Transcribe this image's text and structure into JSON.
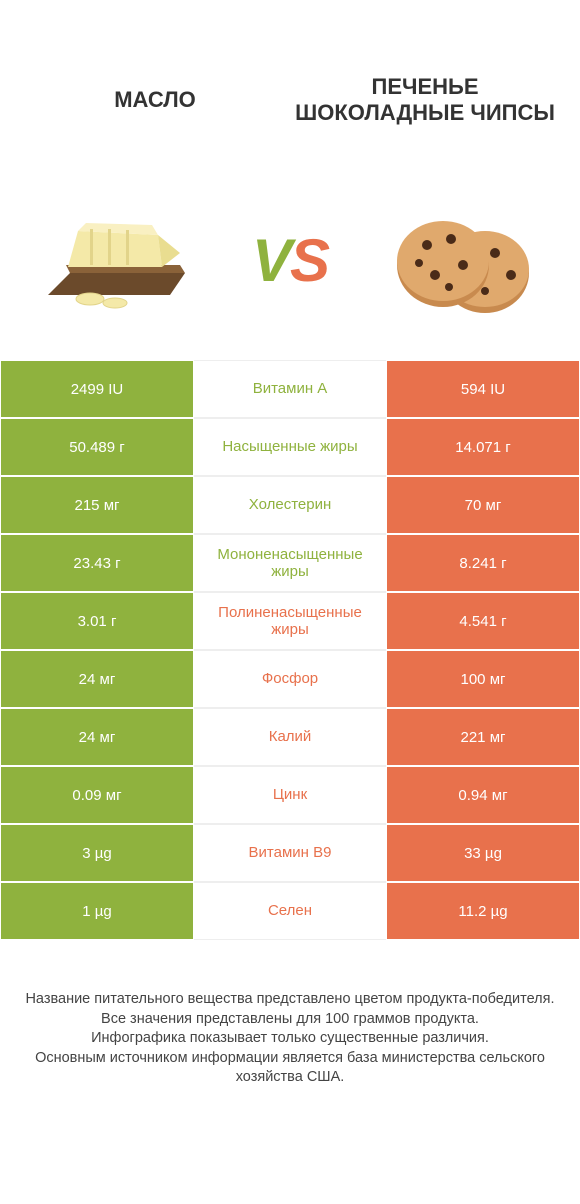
{
  "colors": {
    "green": "#8fb23e",
    "orange": "#e8714c",
    "text_dark": "#333333",
    "bg": "#ffffff"
  },
  "header": {
    "left_title": "МАСЛО",
    "right_title": "ПЕЧЕНЬЕ ШОКОЛАДНЫЕ ЧИПСЫ",
    "vs_v": "V",
    "vs_s": "S"
  },
  "table": {
    "rows": [
      {
        "left": "2499 IU",
        "mid": "Витамин A",
        "right": "594 IU",
        "winner": "left"
      },
      {
        "left": "50.489 г",
        "mid": "Насыщенные жиры",
        "right": "14.071 г",
        "winner": "left"
      },
      {
        "left": "215 мг",
        "mid": "Холестерин",
        "right": "70 мг",
        "winner": "left"
      },
      {
        "left": "23.43 г",
        "mid": "Мононенасыщенные жиры",
        "right": "8.241 г",
        "winner": "left"
      },
      {
        "left": "3.01 г",
        "mid": "Полиненасыщенные жиры",
        "right": "4.541 г",
        "winner": "right"
      },
      {
        "left": "24 мг",
        "mid": "Фосфор",
        "right": "100 мг",
        "winner": "right"
      },
      {
        "left": "24 мг",
        "mid": "Калий",
        "right": "221 мг",
        "winner": "right"
      },
      {
        "left": "0.09 мг",
        "mid": "Цинк",
        "right": "0.94 мг",
        "winner": "right"
      },
      {
        "left": "3 µg",
        "mid": "Витамин B9",
        "right": "33 µg",
        "winner": "right"
      },
      {
        "left": "1 µg",
        "mid": "Селен",
        "right": "11.2 µg",
        "winner": "right"
      }
    ]
  },
  "footer": {
    "line1": "Название питательного вещества представлено цветом продукта-победителя.",
    "line2": "Все значения представлены для 100 граммов продукта.",
    "line3": "Инфографика показывает только существенные различия.",
    "line4": "Основным источником информации является база министерства сельского хозяйства США."
  }
}
